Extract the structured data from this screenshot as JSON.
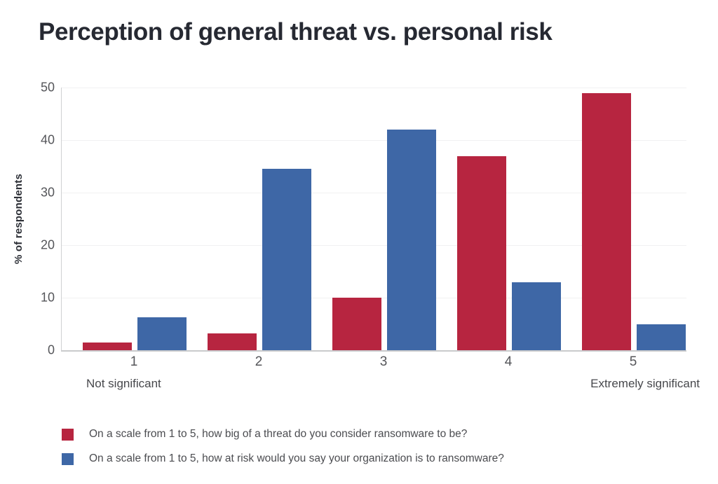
{
  "title": "Perception of general threat vs. personal risk",
  "chart_data": {
    "type": "bar",
    "title": "Perception of general threat vs. personal risk",
    "categories": [
      "1",
      "2",
      "3",
      "4",
      "5"
    ],
    "series": [
      {
        "name": "On a scale from 1 to 5, how big of a threat do you consider ransomware to be?",
        "color": "#b72540",
        "values": [
          1.5,
          3.2,
          10,
          37,
          49
        ]
      },
      {
        "name": "On a scale from 1 to 5, how at risk would you say your organization is to ransomware?",
        "color": "#3e67a6",
        "values": [
          6.3,
          34.5,
          42,
          13,
          5
        ]
      }
    ],
    "ylabel": "% of respondents",
    "xlabel": "",
    "xlabel_left": "Not significant",
    "xlabel_right": "Extremely significant",
    "y_ticks": [
      0,
      10,
      20,
      30,
      40,
      50
    ],
    "ylim": [
      0,
      50
    ],
    "grid": true,
    "legend_position": "bottom"
  },
  "colors": {
    "red": "#b72540",
    "blue": "#3e67a6",
    "title_text": "#262932",
    "tick_text": "#55565a",
    "gridline": "#f1f1f2",
    "axis_line": "#c9cacc"
  }
}
